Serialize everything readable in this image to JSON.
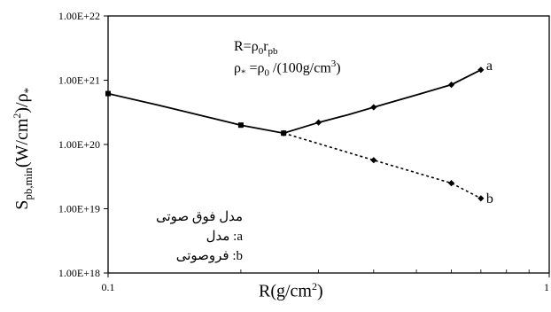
{
  "chart_data": {
    "type": "line",
    "x_scale": "log",
    "y_scale": "log",
    "xlim": [
      0.1,
      1
    ],
    "ylim": [
      1e+18,
      1e+22
    ],
    "x_ticks": [
      "0.1",
      "1"
    ],
    "y_ticks": [
      "1.00E+18",
      "1.00E+19",
      "1.00E+20",
      "1.00E+21",
      "1.00E+22"
    ],
    "y_tick_values": [
      1e+18,
      1e+19,
      1e+20,
      1e+21,
      1e+22
    ],
    "grid": false,
    "series": [
      {
        "name": "a",
        "style": "solid",
        "color": "#000000",
        "line_x": [
          0.1,
          0.13,
          0.16,
          0.2,
          0.25,
          0.3,
          0.35,
          0.4,
          0.5,
          0.6,
          0.7
        ],
        "line_y": [
          6.2e+20,
          4.1e+20,
          2.9e+20,
          2e+20,
          1.5e+20,
          2.2e+20,
          2.9e+20,
          3.8e+20,
          5.9e+20,
          8.5e+20,
          1.45e+21
        ],
        "marker_x": [
          0.1,
          0.2,
          0.25,
          0.3,
          0.4,
          0.6,
          0.7
        ],
        "marker_y": [
          6.2e+20,
          2e+20,
          1.5e+20,
          2.2e+20,
          3.8e+20,
          8.5e+20,
          1.45e+21
        ]
      },
      {
        "name": "b",
        "style": "dotted",
        "color": "#000000",
        "line_x": [
          0.25,
          0.4,
          0.6,
          0.7
        ],
        "line_y": [
          1.5e+20,
          5.7e+19,
          2.5e+19,
          1.45e+19
        ],
        "marker_x": [
          0.25,
          0.4,
          0.6,
          0.7
        ],
        "marker_y": [
          1.5e+20,
          5.7e+19,
          2.5e+19,
          1.45e+19
        ]
      }
    ]
  },
  "labels": {
    "ylabel_main": "S",
    "ylabel_sub": "pb,min",
    "ylabel_mid": "(W/cm",
    "ylabel_sup": "2",
    "ylabel_end": ")/ρ",
    "ylabel_star": "*",
    "xlabel_main": "R(g/cm",
    "xlabel_sup": "2",
    "xlabel_end": ")",
    "ann1_a": "R=ρ",
    "ann1_b": "0",
    "ann1_c": "r",
    "ann1_d": "pb",
    "ann2_a": "ρ",
    "ann2_b": "*",
    "ann2_c": " =ρ",
    "ann2_d": "0",
    "ann2_e": " /(100g/cm",
    "ann2_f": "3",
    "ann2_g": ")"
  },
  "legend": {
    "title": "مدل فوق صوتی",
    "line_a": "a:  مدل",
    "line_b": "b:  فروصوتی"
  }
}
